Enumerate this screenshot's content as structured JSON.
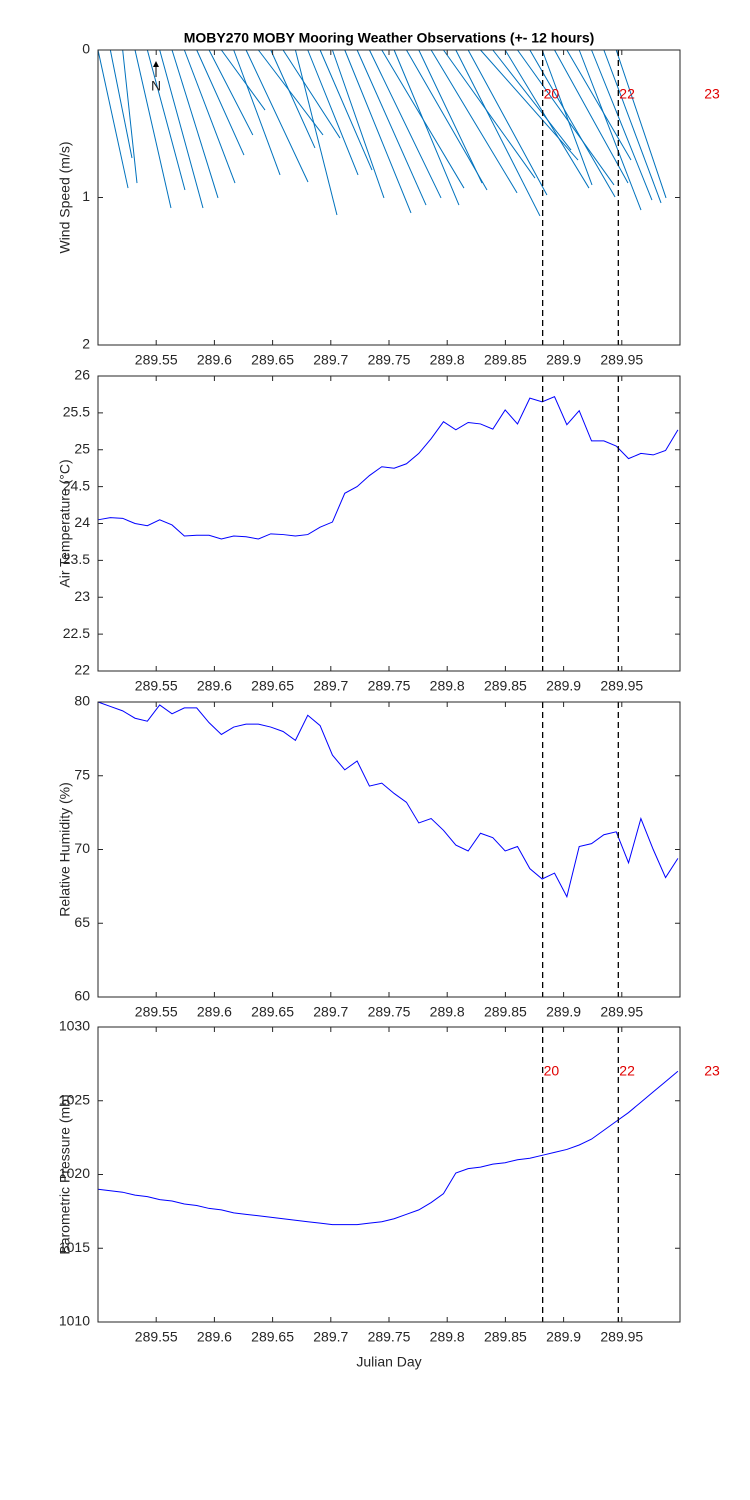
{
  "chart_data": [
    {
      "type": "stick",
      "title": "MOBY270 MOBY Mooring Weather Observations (+- 12 hours)",
      "ylabel": "Wind Speed (m/s)",
      "north_label": "N",
      "color": "#0072bd",
      "ydir": "reverse",
      "x": [
        289.5,
        289.5106,
        289.5212,
        289.5318,
        289.5424,
        289.553,
        289.5636,
        289.5742,
        289.5848,
        289.5954,
        289.606,
        289.6166,
        289.6272,
        289.6378,
        289.6484,
        289.659,
        289.6696,
        289.6802,
        289.6908,
        289.7014,
        289.712,
        289.7226,
        289.7332,
        289.7438,
        289.7544,
        289.765,
        289.7756,
        289.7862,
        289.7968,
        289.8074,
        289.818,
        289.8286,
        289.8392,
        289.8498,
        289.8604,
        289.871,
        289.8816,
        289.8922,
        289.9028,
        289.9134,
        289.924,
        289.9346,
        289.9452
      ],
      "x_end": [
        289.5258,
        289.5292,
        289.5335,
        289.5627,
        289.5747,
        289.5902,
        289.6031,
        289.6177,
        289.6254,
        289.633,
        289.6435,
        289.6564,
        289.6804,
        289.6933,
        289.6864,
        289.7079,
        289.7053,
        289.7234,
        289.7354,
        289.7457,
        289.7689,
        289.7818,
        289.7947,
        289.8144,
        289.8101,
        289.8342,
        289.8299,
        289.86,
        289.8754,
        289.8797,
        289.8857,
        289.9124,
        289.9064,
        289.9218,
        289.9433,
        289.9442,
        289.9244,
        289.9553,
        289.9579,
        289.9665,
        289.9759,
        289.9837,
        289.988
      ],
      "values": [
        0.936,
        0.732,
        0.902,
        1.071,
        0.949,
        1.071,
        1.003,
        0.902,
        0.712,
        0.576,
        0.407,
        0.847,
        0.895,
        0.576,
        0.664,
        0.597,
        1.119,
        0.847,
        0.814,
        1.003,
        1.105,
        1.051,
        1.003,
        0.936,
        1.051,
        0.949,
        0.902,
        0.969,
        0.868,
        1.125,
        0.983,
        0.746,
        0.678,
        0.936,
        0.915,
        0.997,
        0.915,
        0.902,
        0.746,
        1.085,
        1.017,
        1.037,
        1.003
      ],
      "xlim": [
        289.5,
        290.0
      ],
      "xticks": [
        289.55,
        289.6,
        289.65,
        289.7,
        289.75,
        289.8,
        289.85,
        289.9,
        289.95
      ],
      "ylim": [
        0,
        2
      ],
      "yticks": [
        0,
        1,
        2
      ],
      "vlines": [
        289.882,
        289.947
      ],
      "hour_labels": [
        {
          "value": 289.882,
          "label": "20"
        },
        {
          "value": 289.947,
          "label": "22"
        },
        {
          "value": 290.02,
          "label": "23"
        }
      ]
    },
    {
      "type": "line",
      "ylabel": "Air Temperature (°C)",
      "color": "#0000ff",
      "x": [
        289.5,
        289.5106,
        289.5212,
        289.5318,
        289.5424,
        289.553,
        289.5636,
        289.5742,
        289.5848,
        289.5954,
        289.606,
        289.6166,
        289.6272,
        289.6378,
        289.6484,
        289.659,
        289.6696,
        289.6802,
        289.6908,
        289.7014,
        289.712,
        289.7226,
        289.7332,
        289.7438,
        289.7544,
        289.765,
        289.7756,
        289.7862,
        289.7968,
        289.8074,
        289.818,
        289.8286,
        289.8392,
        289.8498,
        289.8604,
        289.871,
        289.8816,
        289.8922,
        289.9028,
        289.9134,
        289.924,
        289.9346,
        289.9452,
        289.9558,
        289.9664,
        289.977,
        289.9876,
        289.9982
      ],
      "values": [
        24.05,
        24.08,
        24.07,
        24.0,
        23.97,
        24.05,
        23.98,
        23.83,
        23.84,
        23.84,
        23.79,
        23.83,
        23.82,
        23.79,
        23.86,
        23.85,
        23.83,
        23.85,
        23.95,
        24.02,
        24.41,
        24.5,
        24.65,
        24.77,
        24.75,
        24.81,
        24.95,
        25.15,
        25.38,
        25.27,
        25.37,
        25.35,
        25.28,
        25.54,
        25.35,
        25.7,
        25.65,
        25.72,
        25.34,
        25.53,
        25.12,
        25.12,
        25.05,
        24.88,
        24.95,
        24.93,
        24.99,
        25.27
      ],
      "xlim": [
        289.5,
        290.0
      ],
      "xticks": [
        289.55,
        289.6,
        289.65,
        289.7,
        289.75,
        289.8,
        289.85,
        289.9,
        289.95
      ],
      "ylim": [
        22,
        26
      ],
      "yticks": [
        22,
        22.5,
        23,
        23.5,
        24,
        24.5,
        25,
        25.5,
        26
      ],
      "vlines": [
        289.882,
        289.947
      ]
    },
    {
      "type": "line",
      "ylabel": "Relative Humidity (%)",
      "color": "#0000ff",
      "x": [
        289.5,
        289.5106,
        289.5212,
        289.5318,
        289.5424,
        289.553,
        289.5636,
        289.5742,
        289.5848,
        289.5954,
        289.606,
        289.6166,
        289.6272,
        289.6378,
        289.6484,
        289.659,
        289.6696,
        289.6802,
        289.6908,
        289.7014,
        289.712,
        289.7226,
        289.7332,
        289.7438,
        289.7544,
        289.765,
        289.7756,
        289.7862,
        289.7968,
        289.8074,
        289.818,
        289.8286,
        289.8392,
        289.8498,
        289.8604,
        289.871,
        289.8816,
        289.8922,
        289.9028,
        289.9134,
        289.924,
        289.9346,
        289.9452,
        289.9558,
        289.9664,
        289.977,
        289.9876,
        289.9982
      ],
      "values": [
        80.0,
        79.7,
        79.4,
        78.9,
        78.7,
        79.8,
        79.2,
        79.6,
        79.6,
        78.6,
        77.8,
        78.3,
        78.5,
        78.5,
        78.3,
        78.0,
        77.4,
        79.1,
        78.4,
        76.4,
        75.4,
        76.0,
        74.3,
        74.5,
        73.8,
        73.2,
        71.8,
        72.1,
        71.3,
        70.3,
        69.9,
        71.1,
        70.8,
        69.9,
        70.2,
        68.7,
        68.0,
        68.4,
        66.8,
        70.2,
        70.4,
        71.0,
        71.2,
        69.1,
        72.1,
        70.0,
        68.1,
        69.4
      ],
      "xlim": [
        289.5,
        290.0
      ],
      "xticks": [
        289.55,
        289.6,
        289.65,
        289.7,
        289.75,
        289.8,
        289.85,
        289.9,
        289.95
      ],
      "ylim": [
        60,
        80
      ],
      "yticks": [
        60,
        65,
        70,
        75,
        80
      ],
      "vlines": [
        289.882,
        289.947
      ]
    },
    {
      "type": "line",
      "ylabel": "Barometric Pressure (mb)",
      "xlabel": "Julian Day",
      "color": "#0000ff",
      "x": [
        289.5,
        289.5106,
        289.5212,
        289.5318,
        289.5424,
        289.553,
        289.5636,
        289.5742,
        289.5848,
        289.5954,
        289.606,
        289.6166,
        289.6272,
        289.6378,
        289.6484,
        289.659,
        289.6696,
        289.6802,
        289.6908,
        289.7014,
        289.712,
        289.7226,
        289.7332,
        289.7438,
        289.7544,
        289.765,
        289.7756,
        289.7862,
        289.7968,
        289.8074,
        289.818,
        289.8286,
        289.8392,
        289.8498,
        289.8604,
        289.871,
        289.8816,
        289.8922,
        289.9028,
        289.9134,
        289.924,
        289.9346,
        289.9452,
        289.9558,
        289.9664,
        289.977,
        289.9876,
        289.9982
      ],
      "values": [
        1019.0,
        1018.9,
        1018.8,
        1018.6,
        1018.5,
        1018.3,
        1018.2,
        1018.0,
        1017.9,
        1017.7,
        1017.6,
        1017.4,
        1017.3,
        1017.2,
        1017.1,
        1017.0,
        1016.9,
        1016.8,
        1016.7,
        1016.6,
        1016.6,
        1016.6,
        1016.7,
        1016.8,
        1017.0,
        1017.3,
        1017.6,
        1018.1,
        1018.7,
        1020.1,
        1020.4,
        1020.5,
        1020.7,
        1020.8,
        1021.0,
        1021.1,
        1021.3,
        1021.5,
        1021.7,
        1022.0,
        1022.4,
        1023.0,
        1023.6,
        1024.2,
        1024.9,
        1025.6,
        1026.3,
        1027.0
      ],
      "xlim": [
        289.5,
        290.0
      ],
      "xticks": [
        289.55,
        289.6,
        289.65,
        289.7,
        289.75,
        289.8,
        289.85,
        289.9,
        289.95
      ],
      "ylim": [
        1010,
        1030
      ],
      "yticks": [
        1010,
        1015,
        1020,
        1025,
        1030
      ],
      "vlines": [
        289.882,
        289.947
      ],
      "hour_labels": [
        {
          "value": 289.882,
          "label": "20"
        },
        {
          "value": 289.947,
          "label": "22"
        },
        {
          "value": 290.02,
          "label": "23"
        }
      ]
    }
  ]
}
